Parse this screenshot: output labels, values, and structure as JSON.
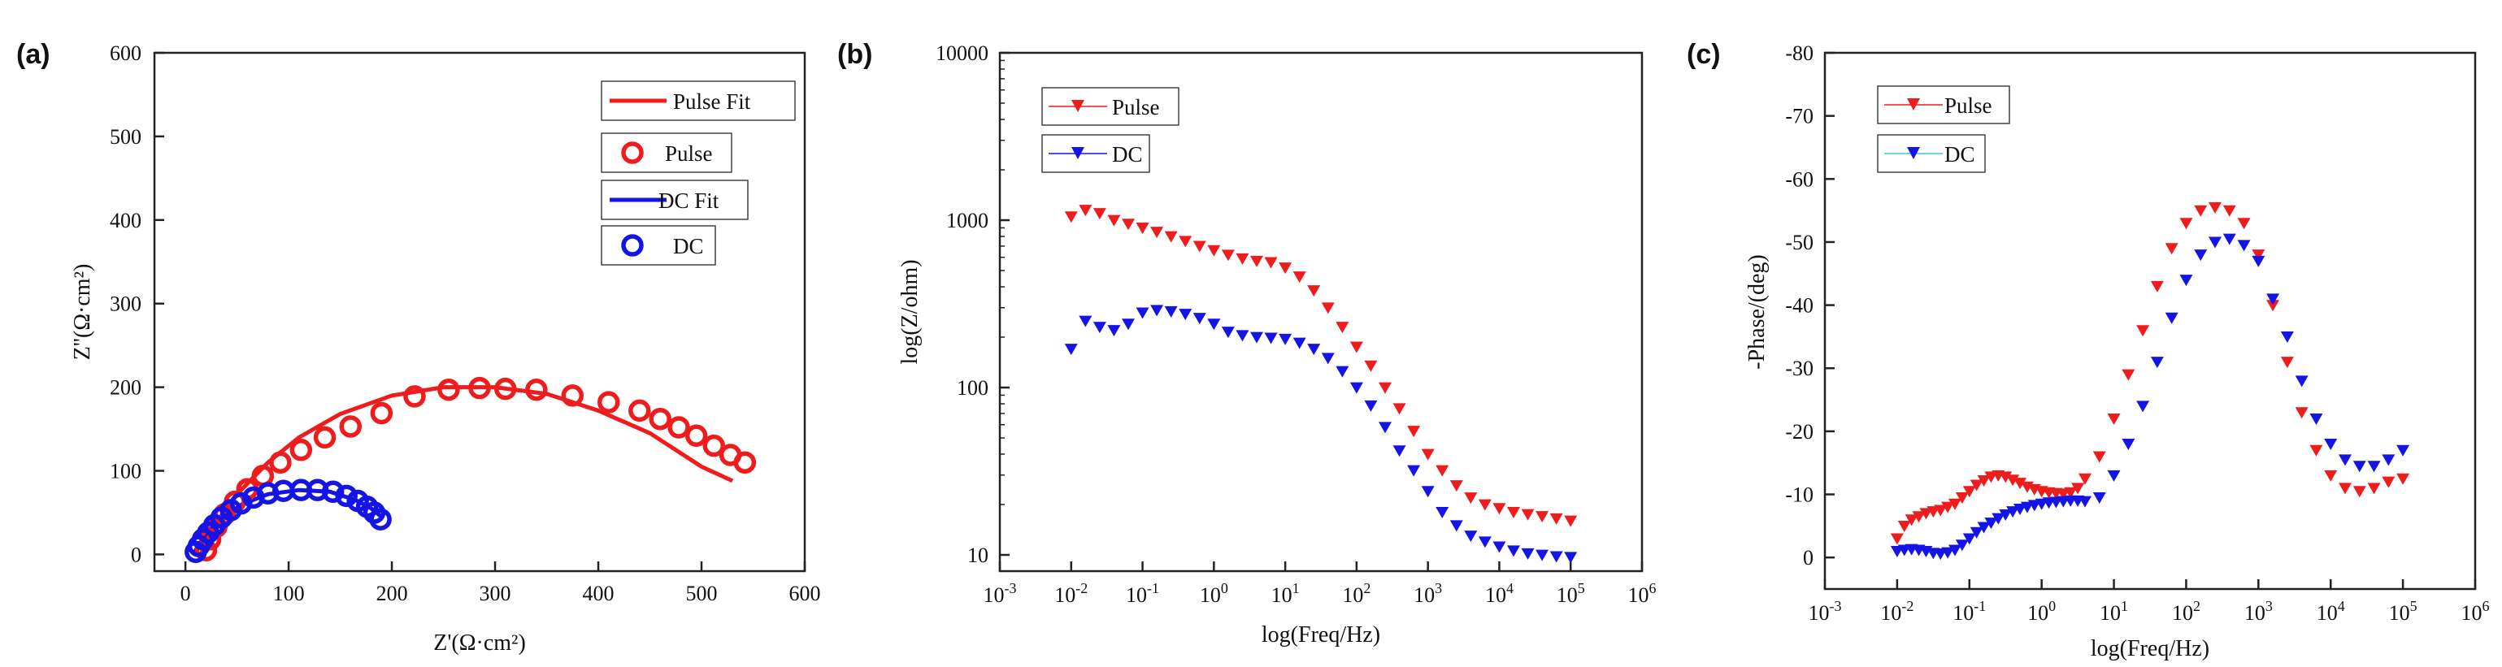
{
  "chart_data": [
    {
      "panel": "(a)",
      "type": "scatter",
      "xlabel": "Z'(Ω·cm²)",
      "ylabel": "Z''(Ω·cm²)",
      "xlim": [
        -30,
        600
      ],
      "ylim": [
        -20,
        600
      ],
      "xticks": [
        0,
        100,
        200,
        300,
        400,
        500,
        600
      ],
      "yticks": [
        0,
        100,
        200,
        300,
        400,
        500,
        600
      ],
      "legend_position": "top-right",
      "series": [
        {
          "name": "Pulse Fit",
          "kind": "line",
          "color": "#ee1c1c",
          "x": [
            15,
            25,
            50,
            80,
            110,
            150,
            200,
            250,
            300,
            350,
            400,
            450,
            500,
            530
          ],
          "y": [
            0,
            30,
            72,
            110,
            140,
            168,
            190,
            200,
            200,
            192,
            172,
            145,
            105,
            88
          ]
        },
        {
          "name": "Pulse",
          "kind": "marker",
          "marker": "circle",
          "color": "#ee1c1c",
          "x": [
            20,
            24,
            30,
            38,
            48,
            60,
            75,
            92,
            112,
            135,
            160,
            190,
            222,
            255,
            285,
            310,
            340,
            375,
            410,
            440,
            460,
            478,
            495,
            512,
            528,
            542
          ],
          "y": [
            5,
            18,
            33,
            48,
            63,
            78,
            94,
            110,
            125,
            140,
            153,
            169,
            189,
            197,
            199,
            198,
            197,
            190,
            182,
            172,
            162,
            152,
            142,
            130,
            119,
            110
          ]
        },
        {
          "name": "DC Fit",
          "kind": "line",
          "color": "#1414e6",
          "x": [
            8,
            12,
            20,
            35,
            55,
            80,
            110,
            140,
            165,
            180,
            190
          ],
          "y": [
            0,
            10,
            25,
            43,
            60,
            72,
            77,
            75,
            65,
            55,
            45
          ]
        },
        {
          "name": "DC",
          "kind": "marker",
          "marker": "circle",
          "color": "#1414e6",
          "x": [
            10,
            13,
            17,
            22,
            28,
            35,
            44,
            54,
            66,
            80,
            95,
            112,
            128,
            143,
            156,
            167,
            176,
            183,
            189
          ],
          "y": [
            3,
            10,
            18,
            26,
            35,
            44,
            53,
            61,
            68,
            73,
            76,
            77,
            77,
            75,
            70,
            64,
            57,
            50,
            42
          ]
        }
      ]
    },
    {
      "panel": "(b)",
      "type": "scatter",
      "xlabel": "log(Freq/Hz)",
      "ylabel": "log(Z/ohm)",
      "xscale": "log",
      "yscale": "log",
      "xlim_exp": [
        -3,
        6
      ],
      "ylim": [
        8,
        10000
      ],
      "xtick_base": "10",
      "xtick_exps": [
        "-3",
        "-2",
        "-1",
        "0",
        "1",
        "2",
        "3",
        "4",
        "5",
        "6"
      ],
      "yticks": [
        10,
        100,
        1000,
        10000
      ],
      "ytick_labels": [
        "10",
        "100",
        "1000",
        "10000"
      ],
      "legend_position": "top-left",
      "series": [
        {
          "name": "Pulse",
          "marker": "triangle-down",
          "color": "#ee1c1c",
          "log_x": [
            -2,
            -1.8,
            -1.6,
            -1.4,
            -1.2,
            -1,
            -0.8,
            -0.6,
            -0.4,
            -0.2,
            0,
            0.2,
            0.4,
            0.6,
            0.8,
            1,
            1.2,
            1.4,
            1.6,
            1.8,
            2,
            2.2,
            2.4,
            2.6,
            2.8,
            3,
            3.2,
            3.4,
            3.6,
            3.8,
            4,
            4.2,
            4.4,
            4.6,
            4.8,
            5
          ],
          "y": [
            1050,
            1150,
            1100,
            1000,
            950,
            900,
            850,
            800,
            750,
            700,
            660,
            620,
            590,
            570,
            560,
            520,
            460,
            380,
            300,
            230,
            175,
            135,
            100,
            75,
            55,
            40,
            32,
            26,
            22,
            20,
            19,
            18,
            17.5,
            17,
            16.5,
            16
          ]
        },
        {
          "name": "DC",
          "marker": "triangle-down",
          "color": "#1414e6",
          "log_x": [
            -2,
            -1.8,
            -1.6,
            -1.4,
            -1.2,
            -1,
            -0.8,
            -0.6,
            -0.4,
            -0.2,
            0,
            0.2,
            0.4,
            0.6,
            0.8,
            1,
            1.2,
            1.4,
            1.6,
            1.8,
            2,
            2.2,
            2.4,
            2.6,
            2.8,
            3,
            3.2,
            3.4,
            3.6,
            3.8,
            4,
            4.2,
            4.4,
            4.6,
            4.8,
            5
          ],
          "y": [
            170,
            250,
            230,
            220,
            240,
            280,
            290,
            285,
            275,
            260,
            240,
            215,
            205,
            200,
            198,
            195,
            185,
            170,
            150,
            125,
            100,
            78,
            58,
            42,
            32,
            24,
            18,
            15,
            13,
            12,
            11.2,
            10.6,
            10.2,
            10,
            9.8,
            9.7
          ]
        }
      ]
    },
    {
      "panel": "(c)",
      "type": "scatter",
      "xlabel": "log(Freq/Hz)",
      "ylabel": "-Phase/(deg)",
      "xscale": "log",
      "xlim_exp": [
        -3,
        6
      ],
      "ylim": [
        5,
        -80
      ],
      "xtick_base": "10",
      "xtick_exps": [
        "-3",
        "-2",
        "-1",
        "0",
        "1",
        "2",
        "3",
        "4",
        "5",
        "6"
      ],
      "yticks": [
        0,
        -10,
        -20,
        -30,
        -40,
        -50,
        -60,
        -70,
        -80
      ],
      "ytick_labels": [
        "0",
        "-10",
        "-20",
        "-30",
        "-40",
        "-50",
        "-60",
        "-70",
        "-80"
      ],
      "legend_position": "top-left",
      "series": [
        {
          "name": "Pulse",
          "marker": "triangle-down",
          "color": "#ee1c1c",
          "log_x": [
            -2,
            -1.9,
            -1.8,
            -1.7,
            -1.6,
            -1.5,
            -1.4,
            -1.3,
            -1.2,
            -1.1,
            -1,
            -0.9,
            -0.8,
            -0.7,
            -0.6,
            -0.5,
            -0.4,
            -0.3,
            -0.2,
            -0.1,
            0,
            0.1,
            0.2,
            0.3,
            0.4,
            0.5,
            0.6,
            0.8,
            1,
            1.2,
            1.4,
            1.6,
            1.8,
            2,
            2.2,
            2.4,
            2.6,
            2.8,
            3,
            3.2,
            3.4,
            3.6,
            3.8,
            4,
            4.2,
            4.4,
            4.6,
            4.8,
            5
          ],
          "y": [
            -3,
            -5,
            -6,
            -6.5,
            -7,
            -7.3,
            -7.5,
            -8,
            -8.5,
            -9.5,
            -10.5,
            -11.5,
            -12.2,
            -12.8,
            -13,
            -12.8,
            -12.3,
            -11.8,
            -11.2,
            -10.8,
            -10.5,
            -10.3,
            -10.2,
            -10.1,
            -10.3,
            -11,
            -12.5,
            -16,
            -22,
            -29,
            -36,
            -43,
            -49,
            -53,
            -55,
            -55.5,
            -55,
            -53,
            -48,
            -40,
            -31,
            -23,
            -17,
            -13,
            -11,
            -10.5,
            -11,
            -12,
            -12.5
          ]
        },
        {
          "name": "DC",
          "marker": "triangle-down",
          "color": "#1414e6",
          "log_x": [
            -2,
            -1.9,
            -1.8,
            -1.7,
            -1.6,
            -1.5,
            -1.4,
            -1.3,
            -1.2,
            -1.1,
            -1,
            -0.9,
            -0.8,
            -0.7,
            -0.6,
            -0.5,
            -0.4,
            -0.3,
            -0.2,
            -0.1,
            0,
            0.1,
            0.2,
            0.3,
            0.4,
            0.5,
            0.6,
            0.8,
            1,
            1.2,
            1.4,
            1.6,
            1.8,
            2,
            2.2,
            2.4,
            2.6,
            2.8,
            3,
            3.2,
            3.4,
            3.6,
            3.8,
            4,
            4.2,
            4.4,
            4.6,
            4.8,
            5
          ],
          "y": [
            -1,
            -1.2,
            -1.3,
            -1.2,
            -1,
            -0.7,
            -0.6,
            -0.8,
            -1.2,
            -2,
            -3,
            -4,
            -4.8,
            -5.5,
            -6.2,
            -6.8,
            -7.3,
            -7.7,
            -8,
            -8.3,
            -8.5,
            -8.7,
            -8.8,
            -8.9,
            -9,
            -9,
            -8.9,
            -9.5,
            -13,
            -18,
            -24,
            -31,
            -38,
            -44,
            -48,
            -50,
            -50.5,
            -49.5,
            -47,
            -41,
            -35,
            -28,
            -22,
            -18,
            -15.5,
            -14.5,
            -14.5,
            -15.5,
            -17
          ]
        }
      ]
    }
  ]
}
